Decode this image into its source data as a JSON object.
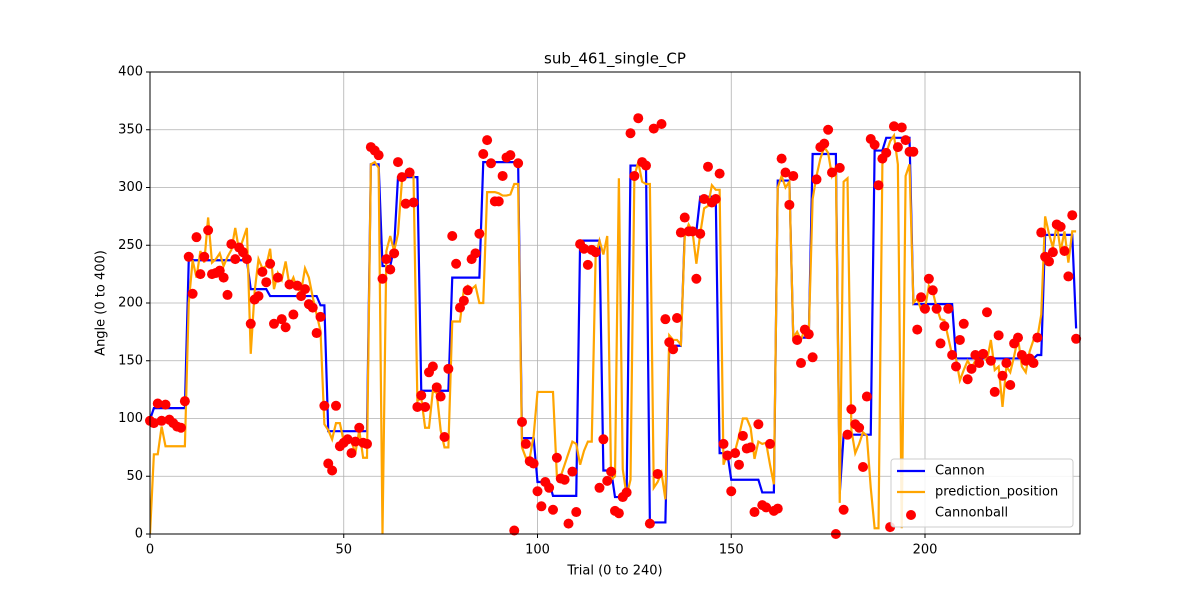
{
  "chart_data": {
    "type": "line_scatter",
    "title": "sub_461_single_CP",
    "xlabel": "Trial (0 to 240)",
    "ylabel": "Angle (0 to 400)",
    "x": [
      0,
      1,
      2,
      3,
      4,
      5,
      6,
      7,
      8,
      9,
      10,
      11,
      12,
      13,
      14,
      15,
      16,
      17,
      18,
      19,
      20,
      21,
      22,
      23,
      24,
      25,
      26,
      27,
      28,
      29,
      30,
      31,
      32,
      33,
      34,
      35,
      36,
      37,
      38,
      39,
      40,
      41,
      42,
      43,
      44,
      45,
      46,
      47,
      48,
      49,
      50,
      51,
      52,
      53,
      54,
      55,
      56,
      57,
      58,
      59,
      60,
      61,
      62,
      63,
      64,
      65,
      66,
      67,
      68,
      69,
      70,
      71,
      72,
      73,
      74,
      75,
      76,
      77,
      78,
      79,
      80,
      81,
      82,
      83,
      84,
      85,
      86,
      87,
      88,
      89,
      90,
      91,
      92,
      93,
      94,
      95,
      96,
      97,
      98,
      99,
      100,
      101,
      102,
      103,
      104,
      105,
      106,
      107,
      108,
      109,
      110,
      111,
      112,
      113,
      114,
      115,
      116,
      117,
      118,
      119,
      120,
      121,
      122,
      123,
      124,
      125,
      126,
      127,
      128,
      129,
      130,
      131,
      132,
      133,
      134,
      135,
      136,
      137,
      138,
      139,
      140,
      141,
      142,
      143,
      144,
      145,
      146,
      147,
      148,
      149,
      150,
      151,
      152,
      153,
      154,
      155,
      156,
      157,
      158,
      159,
      160,
      161,
      162,
      163,
      164,
      165,
      166,
      167,
      168,
      169,
      170,
      171,
      172,
      173,
      174,
      175,
      176,
      177,
      178,
      179,
      180,
      181,
      182,
      183,
      184,
      185,
      186,
      187,
      188,
      189,
      190,
      191,
      192,
      193,
      194,
      195,
      196,
      197,
      198,
      199,
      200,
      201,
      202,
      203,
      204,
      205,
      206,
      207,
      208,
      209,
      210,
      211,
      212,
      213,
      214,
      215,
      216,
      217,
      218,
      219,
      220,
      221,
      222,
      223,
      224,
      225,
      226,
      227,
      228,
      229,
      230,
      231,
      232,
      233,
      234,
      235,
      236,
      237,
      238,
      239
    ],
    "series": [
      {
        "name": "Cannon",
        "kind": "line",
        "color": "#0000ff",
        "values": [
          99,
          109,
          109,
          109,
          109,
          109,
          109,
          109,
          109,
          109,
          237,
          237,
          237,
          237,
          237,
          237,
          237,
          237,
          237,
          237,
          237,
          237,
          237,
          237,
          237,
          237,
          212,
          212,
          212,
          212,
          212,
          206,
          206,
          206,
          206,
          206,
          206,
          206,
          206,
          206,
          206,
          206,
          206,
          206,
          198,
          198,
          89,
          89,
          89,
          89,
          89,
          89,
          89,
          89,
          89,
          89,
          89,
          320,
          320,
          320,
          232,
          232,
          232,
          248,
          309,
          309,
          309,
          309,
          309,
          309,
          124,
          124,
          124,
          124,
          124,
          124,
          124,
          124,
          222,
          222,
          222,
          222,
          222,
          222,
          222,
          222,
          322,
          322,
          322,
          322,
          322,
          322,
          322,
          322,
          322,
          322,
          83,
          83,
          83,
          83,
          45,
          45,
          45,
          45,
          33,
          33,
          33,
          33,
          33,
          33,
          33,
          254,
          254,
          254,
          254,
          254,
          254,
          55,
          55,
          55,
          32,
          32,
          32,
          32,
          319,
          319,
          319,
          319,
          319,
          10,
          10,
          10,
          10,
          10,
          163,
          163,
          163,
          163,
          262,
          262,
          262,
          262,
          292,
          292,
          292,
          292,
          292,
          70,
          70,
          70,
          47,
          47,
          47,
          47,
          47,
          47,
          47,
          47,
          36,
          36,
          36,
          36,
          306,
          306,
          306,
          306,
          170,
          170,
          170,
          170,
          170,
          329,
          329,
          329,
          329,
          329,
          329,
          329,
          35,
          86,
          86,
          86,
          86,
          86,
          86,
          86,
          86,
          332,
          332,
          332,
          343,
          343,
          343,
          343,
          343,
          343,
          343,
          199,
          199,
          199,
          199,
          199,
          199,
          199,
          199,
          199,
          199,
          199,
          152,
          152,
          152,
          152,
          152,
          152,
          152,
          152,
          152,
          152,
          152,
          152,
          152,
          152,
          152,
          152,
          152,
          152,
          152,
          152,
          152,
          155,
          155,
          259,
          259,
          259,
          259,
          259,
          259,
          259,
          259,
          178
        ]
      },
      {
        "name": "prediction_position",
        "kind": "line",
        "color": "#ffa500",
        "values": [
          0,
          69,
          69,
          93,
          76,
          76,
          76,
          76,
          76,
          76,
          200,
          237,
          222,
          245,
          235,
          274,
          235,
          238,
          243,
          232,
          240,
          246,
          265,
          245,
          255,
          265,
          156,
          210,
          238,
          230,
          232,
          247,
          212,
          226,
          220,
          236,
          215,
          222,
          212,
          210,
          230,
          222,
          205,
          190,
          176,
          95,
          90,
          82,
          96,
          96,
          80,
          84,
          80,
          70,
          90,
          66,
          66,
          320,
          322,
          317,
          0,
          245,
          258,
          245,
          260,
          305,
          312,
          316,
          310,
          115,
          118,
          92,
          92,
          124,
          122,
          90,
          75,
          75,
          184,
          184,
          184,
          212,
          215,
          212,
          215,
          200,
          200,
          296,
          296,
          296,
          295,
          293,
          293,
          294,
          303,
          303,
          75,
          66,
          66,
          85,
          123,
          123,
          123,
          123,
          123,
          50,
          50,
          60,
          70,
          80,
          78,
          60,
          72,
          80,
          80,
          240,
          254,
          242,
          258,
          47,
          50,
          308,
          56,
          33,
          47,
          310,
          322,
          305,
          303,
          303,
          40,
          45,
          53,
          30,
          172,
          168,
          168,
          164,
          258,
          268,
          262,
          234,
          260,
          282,
          284,
          302,
          298,
          298,
          60,
          70,
          70,
          72,
          85,
          100,
          100,
          92,
          65,
          80,
          78,
          79,
          60,
          43,
          300,
          310,
          300,
          305,
          170,
          175,
          168,
          178,
          172,
          290,
          310,
          325,
          335,
          330,
          310,
          318,
          27,
          305,
          308,
          90,
          70,
          78,
          88,
          85,
          40,
          5,
          5,
          320,
          330,
          340,
          345,
          320,
          5,
          310,
          320,
          200,
          204,
          194,
          195,
          215,
          210,
          196,
          186,
          185,
          170,
          155,
          152,
          133,
          142,
          150,
          144,
          150,
          155,
          154,
          150,
          168,
          142,
          145,
          110,
          145,
          140,
          154,
          170,
          145,
          140,
          158,
          168,
          170,
          190,
          275,
          260,
          248,
          268,
          245,
          262,
          235,
          262,
          262
        ]
      },
      {
        "name": "Cannonball",
        "kind": "scatter",
        "color": "#ff0000",
        "values": [
          98,
          96,
          113,
          98,
          112,
          99,
          96,
          93,
          92,
          115,
          240,
          208,
          257,
          225,
          240,
          263,
          225,
          226,
          228,
          222,
          207,
          251,
          238,
          248,
          244,
          238,
          182,
          203,
          206,
          227,
          218,
          234,
          182,
          222,
          186,
          179,
          216,
          190,
          215,
          206,
          212,
          199,
          196,
          174,
          188,
          111,
          61,
          55,
          111,
          76,
          79,
          82,
          70,
          80,
          92,
          79,
          78,
          335,
          332,
          328,
          221,
          238,
          229,
          243,
          322,
          309,
          286,
          313,
          287,
          110,
          120,
          110,
          140,
          145,
          127,
          119,
          84,
          143,
          258,
          234,
          196,
          202,
          211,
          238,
          243,
          260,
          329,
          341,
          321,
          288,
          288,
          310,
          326,
          328,
          3,
          321,
          97,
          78,
          63,
          61,
          37,
          24,
          45,
          40,
          21,
          66,
          48,
          47,
          9,
          54,
          19,
          251,
          247,
          233,
          246,
          244,
          40,
          82,
          46,
          54,
          20,
          18,
          32,
          36,
          347,
          310,
          360,
          322,
          319,
          9,
          351,
          52,
          355,
          186,
          166,
          160,
          187,
          261,
          274,
          262,
          262,
          221,
          260,
          290,
          318,
          287,
          290,
          312,
          78,
          68,
          37,
          70,
          60,
          85,
          74,
          75,
          19,
          95,
          25,
          23,
          78,
          20,
          22,
          325,
          313,
          285,
          310,
          168,
          148,
          177,
          173,
          153,
          307,
          335,
          338,
          350,
          313,
          0,
          317,
          21,
          86,
          108,
          95,
          92,
          58,
          119,
          342,
          337,
          302,
          325,
          330,
          6,
          353,
          335,
          352,
          341,
          331,
          331,
          177,
          205,
          195,
          221,
          211,
          195,
          165,
          180,
          195,
          155,
          145,
          168,
          182,
          134,
          143,
          155,
          148,
          156,
          192,
          150,
          123,
          172,
          137,
          148,
          129,
          165,
          170,
          155,
          150,
          152,
          148,
          170,
          261,
          240,
          236,
          244,
          268,
          266,
          245,
          223,
          276,
          169
        ]
      }
    ],
    "xlim": [
      0,
      240
    ],
    "ylim": [
      0,
      400
    ],
    "xticks": [
      0,
      50,
      100,
      150,
      200
    ],
    "yticks": [
      0,
      50,
      100,
      150,
      200,
      250,
      300,
      350,
      400
    ],
    "grid": true,
    "legend": "lower right"
  }
}
